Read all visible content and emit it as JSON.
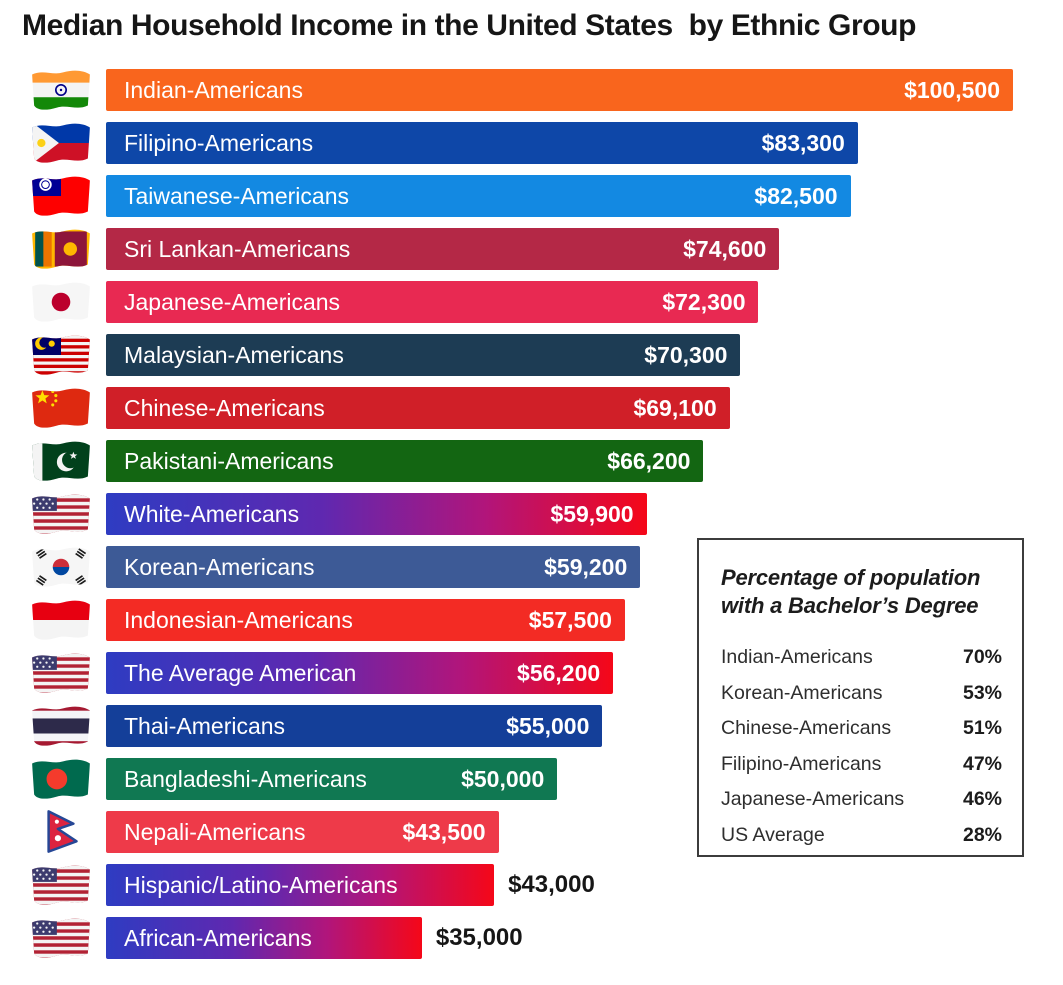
{
  "title": "Median Household Income in the United States  by Ethnic Group",
  "chart_data": {
    "type": "bar",
    "orientation": "horizontal",
    "title": "Median Household Income in the United States by Ethnic Group",
    "max_value": 100500,
    "value_prefix": "$",
    "gradient_usa": [
      "#2e3cc2 0%",
      "#5f28b0 40%",
      "#b1157b 70%",
      "#f50718 100%"
    ],
    "rows": [
      {
        "label": "Indian-Americans",
        "value": 100500,
        "value_label": "$100,500",
        "flag": "india",
        "color": "#f9651d"
      },
      {
        "label": "Filipino-Americans",
        "value": 83300,
        "value_label": "$83,300",
        "flag": "philippines",
        "color": "#0e47a8"
      },
      {
        "label": "Taiwanese-Americans",
        "value": 82500,
        "value_label": "$82,500",
        "flag": "taiwan",
        "color": "#1389e2"
      },
      {
        "label": "Sri Lankan-Americans",
        "value": 74600,
        "value_label": "$74,600",
        "flag": "sri-lanka",
        "color": "#b42846"
      },
      {
        "label": "Japanese-Americans",
        "value": 72300,
        "value_label": "$72,300",
        "flag": "japan",
        "color": "#e82952"
      },
      {
        "label": "Malaysian-Americans",
        "value": 70300,
        "value_label": "$70,300",
        "flag": "malaysia",
        "color": "#1d3c54"
      },
      {
        "label": "Chinese-Americans",
        "value": 69100,
        "value_label": "$69,100",
        "flag": "china",
        "color": "#d01f28"
      },
      {
        "label": "Pakistani-Americans",
        "value": 66200,
        "value_label": "$66,200",
        "flag": "pakistan",
        "color": "#136612"
      },
      {
        "label": "White-Americans",
        "value": 59900,
        "value_label": "$59,900",
        "flag": "usa",
        "gradient": true
      },
      {
        "label": "Korean-Americans",
        "value": 59200,
        "value_label": "$59,200",
        "flag": "south-korea",
        "color": "#3d5a96"
      },
      {
        "label": "Indonesian-Americans",
        "value": 57500,
        "value_label": "$57,500",
        "flag": "indonesia",
        "color": "#f32b24"
      },
      {
        "label": "The Average American",
        "value": 56200,
        "value_label": "$56,200",
        "flag": "usa",
        "gradient": true
      },
      {
        "label": "Thai-Americans",
        "value": 55000,
        "value_label": "$55,000",
        "flag": "thailand",
        "color": "#143f99"
      },
      {
        "label": "Bangladeshi-Americans",
        "value": 50000,
        "value_label": "$50,000",
        "flag": "bangladesh",
        "color": "#107852"
      },
      {
        "label": "Nepali-Americans",
        "value": 43500,
        "value_label": "$43,500",
        "flag": "nepal",
        "color": "#ee3a49"
      },
      {
        "label": "Hispanic/Latino-Americans",
        "value": 43000,
        "value_label": "$43,000",
        "flag": "usa",
        "gradient": true,
        "value_outside": true
      },
      {
        "label": "African-Americans",
        "value": 35000,
        "value_label": "$35,000",
        "flag": "usa",
        "gradient": true,
        "value_outside": true
      }
    ]
  },
  "legend": {
    "title": "Percentage of population with a Bachelor’s Degree",
    "rows": [
      {
        "label": "Indian-Americans",
        "value": "70%"
      },
      {
        "label": "Korean-Americans",
        "value": "53%"
      },
      {
        "label": "Chinese-Americans",
        "value": "51%"
      },
      {
        "label": "Filipino-Americans",
        "value": "47%"
      },
      {
        "label": "Japanese-Americans",
        "value": "46%"
      },
      {
        "label": "US Average",
        "value": "28%"
      }
    ]
  }
}
